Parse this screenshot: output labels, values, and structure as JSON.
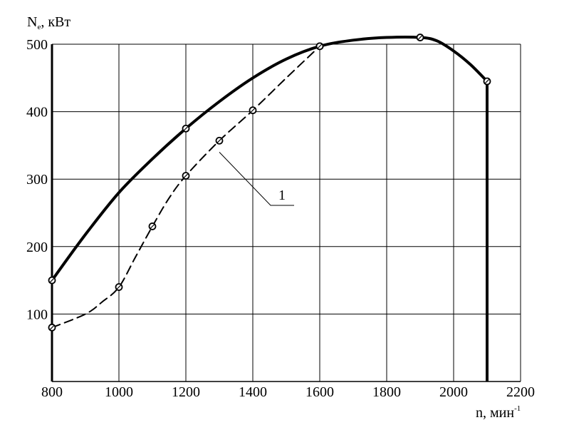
{
  "chart_data": {
    "type": "line",
    "title": "",
    "xlabel": "n, мин",
    "xlabel_superscript": "-1",
    "ylabel": "N",
    "ylabel_subscript": "e",
    "ylabel_unit": ", кВт",
    "xlim": [
      800,
      2200
    ],
    "ylim": [
      0,
      500
    ],
    "x_ticks": [
      800,
      1000,
      1200,
      1400,
      1600,
      1800,
      2000,
      2200
    ],
    "y_ticks": [
      100,
      200,
      300,
      400,
      500
    ],
    "grid": true,
    "legend": "none",
    "series": [
      {
        "style": "solid-bold",
        "x": [
          800,
          1200,
          1600,
          1900,
          2100
        ],
        "y": [
          150,
          375,
          497,
          510,
          445
        ],
        "curve_x": [
          800,
          900,
          1000,
          1100,
          1200,
          1300,
          1400,
          1500,
          1600,
          1700,
          1800,
          1900,
          1950,
          2000,
          2050,
          2100
        ],
        "curve_y": [
          150,
          218,
          280,
          330,
          375,
          415,
          450,
          478,
          497,
          506,
          510,
          510,
          505,
          490,
          470,
          445
        ],
        "drop_to_zero_at_x": 2100
      },
      {
        "style": "dashed",
        "x": [
          800,
          1000,
          1100,
          1200,
          1300,
          1400,
          1600
        ],
        "y": [
          80,
          140,
          230,
          305,
          357,
          402,
          497
        ],
        "curve_x": [
          800,
          900,
          950,
          1000,
          1050,
          1100,
          1150,
          1200,
          1300,
          1400,
          1500,
          1600
        ],
        "curve_y": [
          80,
          100,
          118,
          140,
          185,
          230,
          272,
          305,
          357,
          402,
          450,
          497
        ]
      }
    ],
    "annotations": [
      {
        "text": "1",
        "series_index": 1,
        "at_x": 1300,
        "at_y": 340
      }
    ]
  }
}
